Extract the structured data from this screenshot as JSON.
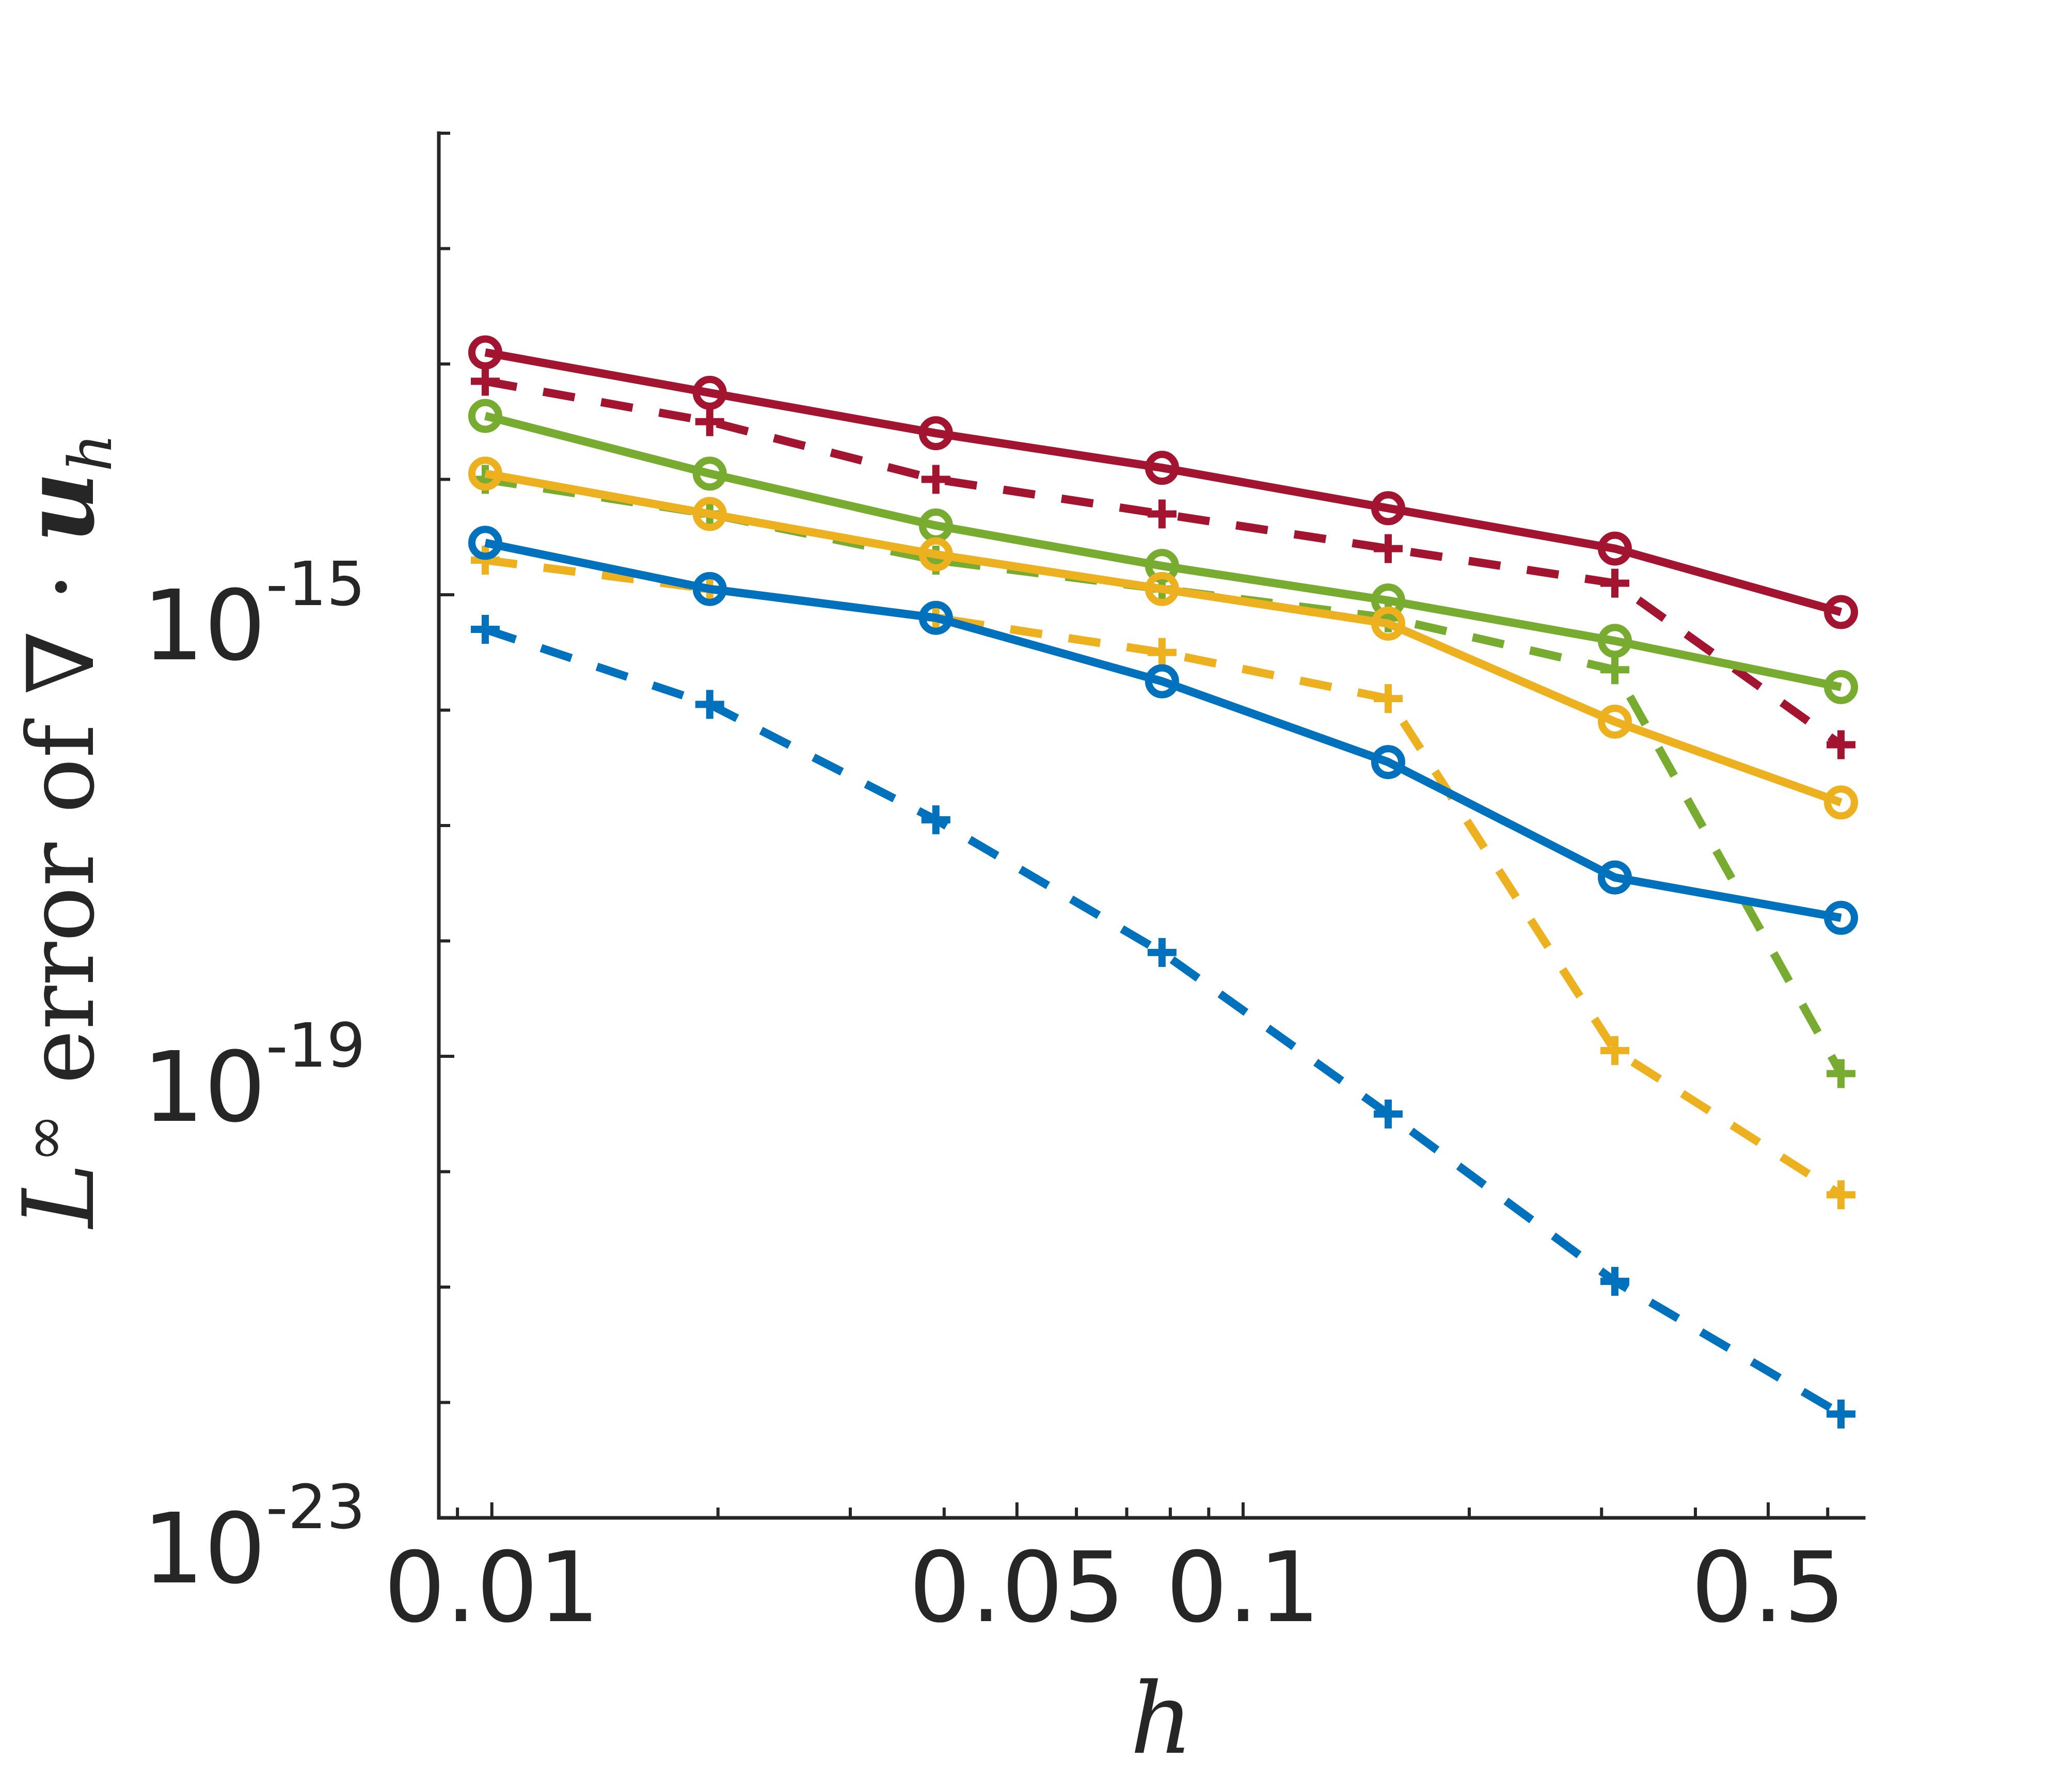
{
  "chart_data": {
    "type": "line",
    "title": "",
    "xlabel": "h",
    "ylabel": {
      "prefix": "L",
      "superscript": "∞",
      "text": " error of ∇ · ",
      "var": "u",
      "subscript": "h"
    },
    "xscale": "log",
    "yscale": "log",
    "xlim": [
      0.0085,
      0.67
    ],
    "ylim_exponents": [
      -23,
      -11
    ],
    "xticks": [
      {
        "value": 0.01,
        "label": "0.01"
      },
      {
        "value": 0.05,
        "label": "0.05"
      },
      {
        "value": 0.1,
        "label": "0.1"
      },
      {
        "value": 0.5,
        "label": "0.5"
      }
    ],
    "yticks": [
      {
        "exponent": -15,
        "base": "10",
        "exp": "-15"
      },
      {
        "exponent": -19,
        "base": "10",
        "exp": "-19"
      },
      {
        "exponent": -23,
        "base": "10",
        "exp": "-23"
      }
    ],
    "grid": false,
    "legend": "none",
    "x": [
      0.0098,
      0.0195,
      0.039,
      0.078,
      0.156,
      0.3125,
      0.625
    ],
    "series": [
      {
        "color": "#A2142F",
        "style": "solid",
        "marker": "circle",
        "log10_values": [
          -12.9,
          -13.25,
          -13.6,
          -13.9,
          -14.25,
          -14.6,
          -15.15
        ]
      },
      {
        "color": "#A2142F",
        "style": "dashed",
        "marker": "plus",
        "log10_values": [
          -13.15,
          -13.5,
          -14.0,
          -14.3,
          -14.6,
          -14.9,
          -16.3
        ]
      },
      {
        "color": "#77AC30",
        "style": "solid",
        "marker": "circle",
        "log10_values": [
          -13.45,
          -13.95,
          -14.4,
          -14.75,
          -15.05,
          -15.4,
          -15.8
        ]
      },
      {
        "color": "#77AC30",
        "style": "dashed",
        "marker": "plus",
        "log10_values": [
          -14.0,
          -14.3,
          -14.7,
          -14.95,
          -15.2,
          -15.65,
          -19.15
        ]
      },
      {
        "color": "#EDB120",
        "style": "solid",
        "marker": "circle",
        "log10_values": [
          -13.95,
          -14.3,
          -14.65,
          -14.95,
          -15.25,
          -16.1,
          -16.8
        ]
      },
      {
        "color": "#EDB120",
        "style": "dashed",
        "marker": "plus",
        "log10_values": [
          -14.7,
          -14.95,
          -15.2,
          -15.5,
          -15.9,
          -18.95,
          -20.2
        ]
      },
      {
        "color": "#0072BD",
        "style": "solid",
        "marker": "circle",
        "log10_values": [
          -14.55,
          -14.95,
          -15.2,
          -15.75,
          -16.45,
          -17.45,
          -17.8
        ]
      },
      {
        "color": "#0072BD",
        "style": "dashed",
        "marker": "plus",
        "log10_values": [
          -15.3,
          -15.95,
          -16.95,
          -18.1,
          -19.5,
          -20.95,
          -22.1
        ]
      }
    ]
  }
}
